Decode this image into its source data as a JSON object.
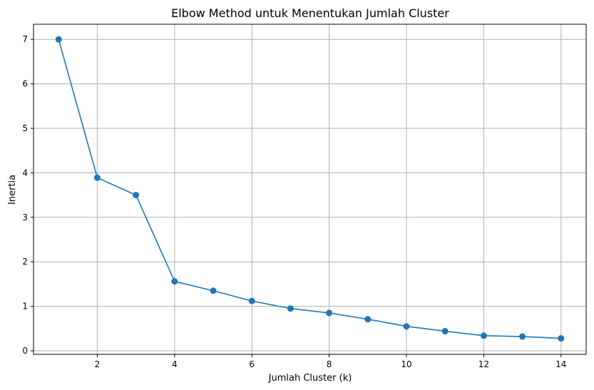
{
  "chart_data": {
    "type": "line",
    "title": "Elbow Method untuk Menentukan Jumlah Cluster",
    "xlabel": "Jumlah Cluster (k)",
    "ylabel": "Inertia",
    "x": [
      1,
      2,
      3,
      4,
      5,
      6,
      7,
      8,
      9,
      10,
      11,
      12,
      13,
      14
    ],
    "series": [
      {
        "values": [
          7.0,
          3.89,
          3.5,
          1.56,
          1.35,
          1.12,
          0.95,
          0.85,
          0.71,
          0.55,
          0.44,
          0.34,
          0.32,
          0.28
        ],
        "color": "#1f77b4",
        "marker": "circle"
      }
    ],
    "xlim": [
      0.35,
      14.65
    ],
    "ylim": [
      -0.08,
      7.34
    ],
    "xticks": [
      2,
      4,
      6,
      8,
      10,
      12,
      14
    ],
    "yticks": [
      0,
      1,
      2,
      3,
      4,
      5,
      6,
      7
    ],
    "grid": true
  }
}
